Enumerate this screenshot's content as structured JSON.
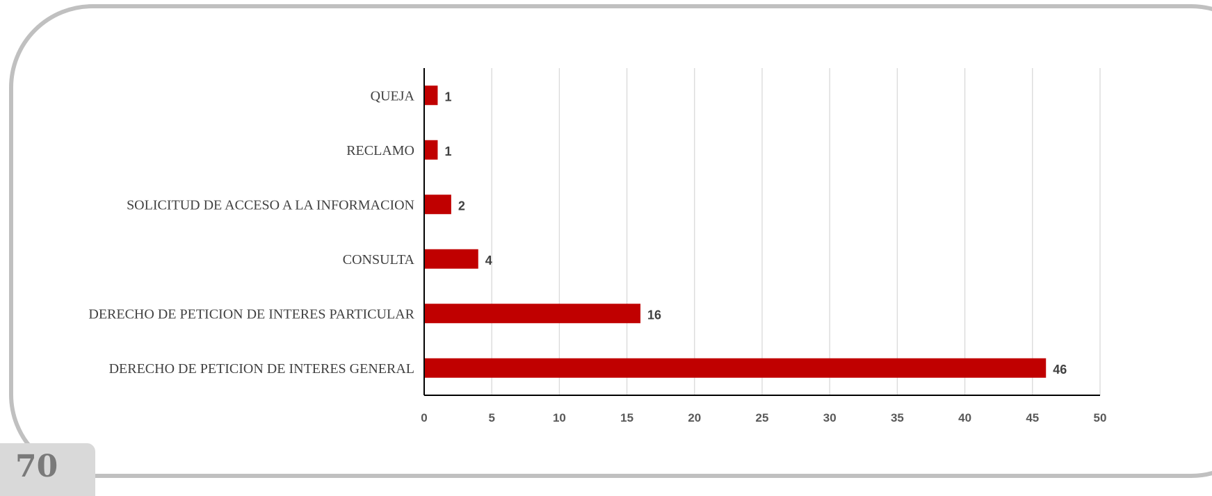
{
  "page_number": "70",
  "colors": {
    "bar": "#c00000",
    "grid": "#d9d9d9",
    "axis": "#000000",
    "frame": "#c0c0c0",
    "tab": "#d9d9d9"
  },
  "chart_data": {
    "type": "bar",
    "orientation": "horizontal",
    "title": "",
    "xlabel": "",
    "ylabel": "",
    "categories": [
      "QUEJA",
      "RECLAMO",
      "SOLICITUD DE ACCESO A LA INFORMACION",
      "CONSULTA",
      "DERECHO DE PETICION DE INTERES PARTICULAR",
      "DERECHO DE PETICION DE INTERES GENERAL"
    ],
    "values": [
      1,
      1,
      2,
      4,
      16,
      46
    ],
    "data_labels": [
      "1",
      "1",
      "2",
      "4",
      "16",
      "46"
    ],
    "xlim": [
      0,
      50
    ],
    "x_ticks": [
      0,
      5,
      10,
      15,
      20,
      25,
      30,
      35,
      40,
      45,
      50
    ],
    "grid": "vertical",
    "legend": "none"
  }
}
